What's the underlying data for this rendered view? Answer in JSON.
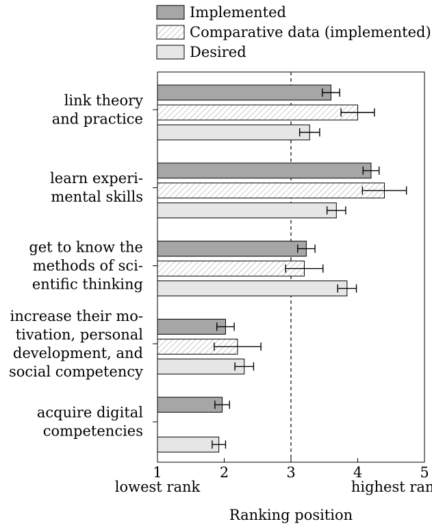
{
  "chart_data": {
    "type": "bar",
    "orientation": "horizontal",
    "xlabel": "Ranking position",
    "xlim": [
      1,
      5
    ],
    "xticks": [
      "1",
      "2",
      "3",
      "4",
      "5"
    ],
    "xmin_label": "lowest rank",
    "xmax_label": "highest rank",
    "reference_line": 3,
    "categories": [
      [
        "link theory",
        "and practice"
      ],
      [
        "learn experi-",
        "mental skills"
      ],
      [
        "get to know the",
        "methods of sci-",
        "entific thinking"
      ],
      [
        "increase their mo-",
        "tivation, personal",
        "development, and",
        "social competency"
      ],
      [
        "acquire digital",
        "competencies"
      ]
    ],
    "series": [
      {
        "name": "Implemented",
        "style": "solid",
        "color": "#a6a6a6",
        "values": [
          3.6,
          4.2,
          3.23,
          2.02,
          1.97
        ],
        "errors": [
          0.13,
          0.12,
          0.13,
          0.13,
          0.11
        ]
      },
      {
        "name": "Comparative data (implemented)",
        "style": "hatched",
        "color": "#ffffff",
        "values": [
          4.0,
          4.4,
          3.2,
          2.2,
          null
        ],
        "errors": [
          0.25,
          0.33,
          0.28,
          0.35,
          null
        ]
      },
      {
        "name": "Desired",
        "style": "solid",
        "color": "#e6e6e6",
        "values": [
          3.28,
          3.68,
          3.84,
          2.3,
          1.92
        ],
        "errors": [
          0.15,
          0.14,
          0.14,
          0.14,
          0.1
        ]
      }
    ],
    "legend_position": "top"
  }
}
